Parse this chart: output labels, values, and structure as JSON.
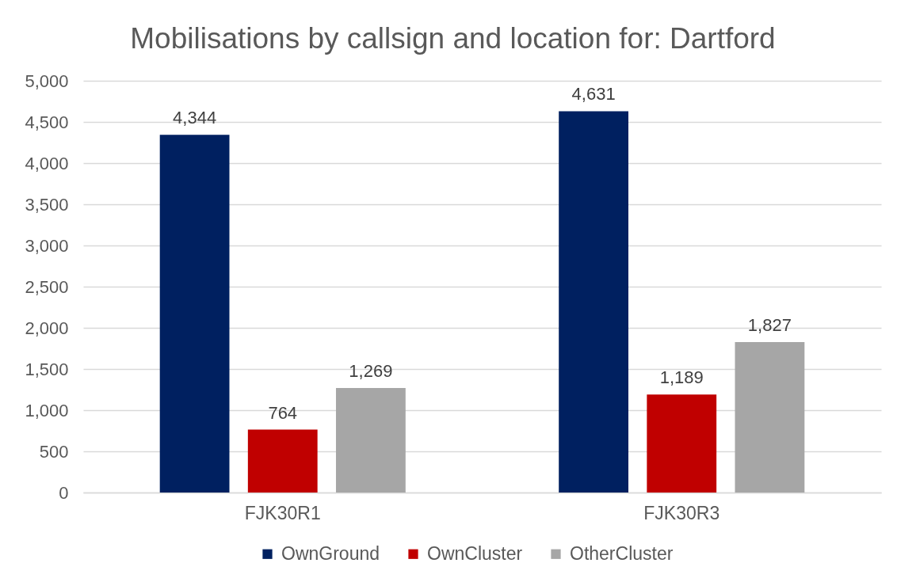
{
  "chart_data": {
    "type": "bar",
    "title": "Mobilisations by callsign and location for: Dartford",
    "categories": [
      "FJK30R1",
      "FJK30R3"
    ],
    "series": [
      {
        "name": "OwnGround",
        "color": "#002060",
        "values": [
          4344,
          4631
        ],
        "value_labels": [
          "4,344",
          "4,631"
        ]
      },
      {
        "name": "OwnCluster",
        "color": "#c00000",
        "values": [
          764,
          1189
        ],
        "value_labels": [
          "764",
          "1,189"
        ]
      },
      {
        "name": "OtherCluster",
        "color": "#a6a6a6",
        "values": [
          1269,
          1827
        ],
        "value_labels": [
          "1,269",
          "1,827"
        ]
      }
    ],
    "ylim": [
      0,
      5000
    ],
    "yticks": [
      0,
      {
        "value": 500,
        "label": "500"
      },
      {
        "value": 1000,
        "label": "1,000"
      },
      {
        "value": 1500,
        "label": "1,500"
      },
      {
        "value": 2000,
        "label": "2,000"
      },
      {
        "value": 2500,
        "label": "2,500"
      },
      {
        "value": 3000,
        "label": "3,000"
      },
      {
        "value": 3500,
        "label": "3,500"
      },
      {
        "value": 4000,
        "label": "4,000"
      },
      {
        "value": 4500,
        "label": "4,500"
      },
      {
        "value": 5000,
        "label": "5,000"
      }
    ],
    "grid": "y",
    "legend": "bottom"
  }
}
